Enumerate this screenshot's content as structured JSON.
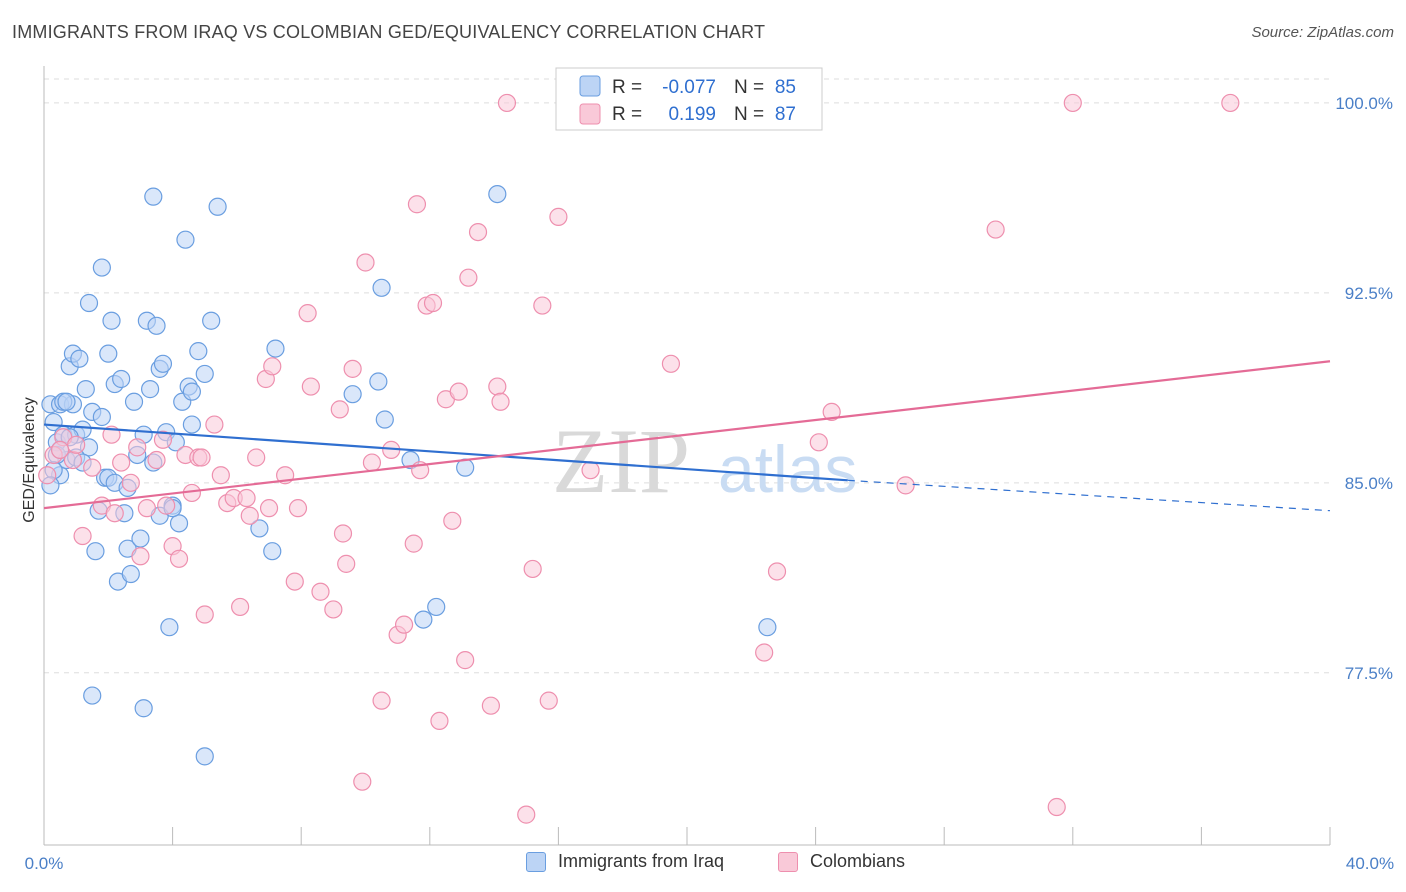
{
  "title": "IMMIGRANTS FROM IRAQ VS COLOMBIAN GED/EQUIVALENCY CORRELATION CHART",
  "source": "Source: ZipAtlas.com",
  "watermark": {
    "zip": "ZIP",
    "atlas": "atlas"
  },
  "legend": {
    "items": [
      {
        "r_label": "R =",
        "r_value": "-0.077",
        "n_label": "N =",
        "n_value": "85"
      },
      {
        "r_label": "R =",
        "r_value": "0.199",
        "n_label": "N =",
        "n_value": "87"
      }
    ]
  },
  "colors": {
    "iraq_fill": "#bcd4f5",
    "iraq_stroke": "#6a9ee0",
    "iraq_line": "#2f6fd0",
    "colombian_fill": "#f9c9d8",
    "colombian_stroke": "#ee8fae",
    "colombian_line": "#e46b96",
    "tick_text": "#4a7fc7",
    "grid": "#dddddd"
  },
  "chart_data": {
    "type": "scatter",
    "title": "IMMIGRANTS FROM IRAQ VS COLOMBIAN GED/EQUIVALENCY CORRELATION CHART",
    "xlabel": "",
    "ylabel": "GED/Equivalency",
    "xlim": [
      0,
      40
    ],
    "ylim": [
      70.7,
      101.3
    ],
    "x_tick_labels": [
      "0.0%",
      "40.0%"
    ],
    "y_ticks": [
      {
        "value": 77.5,
        "label": "77.5%"
      },
      {
        "value": 85.0,
        "label": "85.0%"
      },
      {
        "value": 92.5,
        "label": "92.5%"
      },
      {
        "value": 100.0,
        "label": "100.0%"
      }
    ],
    "grid": "horizontal dashed",
    "legend_position": "top-center",
    "series": [
      {
        "name": "Immigrants from Iraq",
        "r": -0.077,
        "n": 85,
        "trend": {
          "x": [
            0,
            25
          ],
          "y": [
            87.3,
            85.1
          ],
          "dashed_x": [
            25,
            40
          ],
          "dashed_y": [
            85.1,
            83.9
          ]
        },
        "points": [
          [
            0.2,
            88.1
          ],
          [
            0.3,
            87.4
          ],
          [
            0.4,
            86.6
          ],
          [
            0.5,
            88.1
          ],
          [
            0.5,
            85.3
          ],
          [
            0.6,
            86.9
          ],
          [
            0.7,
            85.9
          ],
          [
            0.8,
            89.6
          ],
          [
            0.9,
            88.1
          ],
          [
            0.4,
            86.1
          ],
          [
            0.6,
            88.2
          ],
          [
            0.9,
            90.1
          ],
          [
            1.0,
            86.9
          ],
          [
            1.1,
            89.9
          ],
          [
            1.2,
            87.1
          ],
          [
            1.3,
            88.7
          ],
          [
            1.4,
            86.4
          ],
          [
            1.5,
            87.8
          ],
          [
            1.6,
            82.3
          ],
          [
            1.7,
            83.9
          ],
          [
            1.8,
            93.5
          ],
          [
            1.9,
            85.2
          ],
          [
            2.0,
            90.1
          ],
          [
            2.1,
            91.4
          ],
          [
            2.2,
            88.9
          ],
          [
            2.3,
            81.1
          ],
          [
            2.4,
            89.1
          ],
          [
            2.5,
            83.8
          ],
          [
            2.6,
            82.4
          ],
          [
            2.7,
            81.4
          ],
          [
            2.8,
            88.2
          ],
          [
            3.0,
            82.8
          ],
          [
            3.1,
            86.9
          ],
          [
            3.2,
            91.4
          ],
          [
            3.3,
            88.7
          ],
          [
            3.4,
            85.8
          ],
          [
            3.5,
            91.2
          ],
          [
            3.6,
            89.5
          ],
          [
            3.7,
            89.7
          ],
          [
            3.8,
            87.0
          ],
          [
            3.9,
            79.3
          ],
          [
            4.0,
            84.1
          ],
          [
            4.1,
            86.6
          ],
          [
            4.3,
            88.2
          ],
          [
            4.4,
            94.6
          ],
          [
            4.5,
            88.8
          ],
          [
            4.6,
            87.3
          ],
          [
            4.8,
            90.2
          ],
          [
            5.0,
            89.3
          ],
          [
            5.2,
            91.4
          ],
          [
            5.4,
            95.9
          ],
          [
            3.4,
            96.3
          ],
          [
            1.4,
            92.1
          ],
          [
            4.2,
            83.4
          ],
          [
            2.0,
            85.2
          ],
          [
            1.0,
            86.0
          ],
          [
            0.3,
            85.5
          ],
          [
            0.2,
            84.9
          ],
          [
            6.7,
            83.2
          ],
          [
            7.1,
            82.3
          ],
          [
            7.2,
            90.3
          ],
          [
            9.6,
            88.5
          ],
          [
            10.4,
            89.0
          ],
          [
            10.5,
            92.7
          ],
          [
            10.6,
            87.5
          ],
          [
            11.4,
            85.9
          ],
          [
            11.8,
            79.6
          ],
          [
            12.2,
            80.1
          ],
          [
            13.1,
            85.6
          ],
          [
            14.1,
            96.4
          ],
          [
            22.5,
            79.3
          ],
          [
            5.0,
            74.2
          ],
          [
            3.1,
            76.1
          ],
          [
            1.5,
            76.6
          ],
          [
            0.8,
            86.8
          ],
          [
            2.2,
            85.0
          ],
          [
            3.6,
            83.7
          ],
          [
            4.6,
            88.6
          ],
          [
            1.8,
            87.6
          ],
          [
            0.7,
            88.2
          ],
          [
            2.6,
            84.8
          ],
          [
            1.2,
            85.8
          ],
          [
            0.5,
            86.3
          ],
          [
            2.9,
            86.1
          ],
          [
            4.0,
            84.0
          ]
        ]
      },
      {
        "name": "Colombians",
        "r": 0.199,
        "n": 87,
        "trend": {
          "x": [
            0,
            40
          ],
          "y": [
            84.0,
            89.8
          ]
        },
        "points": [
          [
            0.1,
            85.3
          ],
          [
            0.3,
            86.1
          ],
          [
            0.6,
            86.8
          ],
          [
            0.9,
            85.9
          ],
          [
            1.2,
            82.9
          ],
          [
            1.5,
            85.6
          ],
          [
            1.8,
            84.1
          ],
          [
            2.1,
            86.9
          ],
          [
            2.4,
            85.8
          ],
          [
            2.7,
            85.0
          ],
          [
            2.9,
            86.4
          ],
          [
            3.0,
            82.1
          ],
          [
            3.2,
            84.0
          ],
          [
            3.5,
            85.9
          ],
          [
            3.7,
            86.7
          ],
          [
            3.8,
            84.1
          ],
          [
            4.0,
            82.5
          ],
          [
            4.2,
            82.0
          ],
          [
            4.4,
            86.1
          ],
          [
            4.6,
            84.6
          ],
          [
            4.8,
            86.0
          ],
          [
            5.0,
            79.8
          ],
          [
            5.3,
            87.3
          ],
          [
            5.5,
            85.3
          ],
          [
            5.7,
            84.2
          ],
          [
            5.9,
            84.4
          ],
          [
            6.1,
            80.1
          ],
          [
            6.4,
            83.7
          ],
          [
            6.6,
            86.0
          ],
          [
            6.9,
            89.1
          ],
          [
            7.1,
            89.6
          ],
          [
            7.5,
            85.3
          ],
          [
            7.8,
            81.1
          ],
          [
            7.9,
            84.0
          ],
          [
            8.2,
            91.7
          ],
          [
            8.3,
            88.8
          ],
          [
            8.6,
            80.7
          ],
          [
            9.0,
            80.0
          ],
          [
            9.2,
            87.9
          ],
          [
            9.4,
            81.8
          ],
          [
            9.6,
            89.5
          ],
          [
            9.9,
            73.2
          ],
          [
            10.0,
            93.7
          ],
          [
            10.2,
            85.8
          ],
          [
            10.5,
            76.4
          ],
          [
            10.8,
            86.3
          ],
          [
            11.0,
            79.0
          ],
          [
            11.2,
            79.4
          ],
          [
            11.5,
            82.6
          ],
          [
            11.6,
            96.0
          ],
          [
            11.7,
            85.5
          ],
          [
            11.9,
            92.0
          ],
          [
            12.1,
            92.1
          ],
          [
            12.3,
            75.6
          ],
          [
            12.5,
            88.3
          ],
          [
            12.7,
            83.5
          ],
          [
            12.9,
            88.6
          ],
          [
            13.1,
            78.0
          ],
          [
            13.2,
            93.1
          ],
          [
            13.5,
            94.9
          ],
          [
            13.9,
            76.2
          ],
          [
            14.1,
            88.8
          ],
          [
            14.2,
            88.2
          ],
          [
            15.0,
            71.9
          ],
          [
            15.2,
            81.6
          ],
          [
            15.5,
            92.0
          ],
          [
            15.7,
            76.4
          ],
          [
            16.0,
            95.5
          ],
          [
            17.0,
            85.5
          ],
          [
            19.5,
            89.7
          ],
          [
            22.4,
            78.3
          ],
          [
            22.8,
            81.5
          ],
          [
            24.1,
            86.6
          ],
          [
            24.5,
            87.8
          ],
          [
            26.8,
            84.9
          ],
          [
            29.6,
            95.0
          ],
          [
            31.5,
            72.2
          ],
          [
            32.0,
            100.0
          ],
          [
            36.9,
            100.0
          ],
          [
            14.4,
            100.0
          ],
          [
            1.0,
            86.5
          ],
          [
            6.3,
            84.4
          ],
          [
            2.2,
            83.8
          ],
          [
            4.9,
            86.0
          ],
          [
            7.0,
            84.0
          ],
          [
            9.3,
            83.0
          ],
          [
            0.5,
            86.3
          ]
        ]
      }
    ]
  },
  "bottom_legend": [
    {
      "label": "Immigrants from Iraq"
    },
    {
      "label": "Colombians"
    }
  ]
}
